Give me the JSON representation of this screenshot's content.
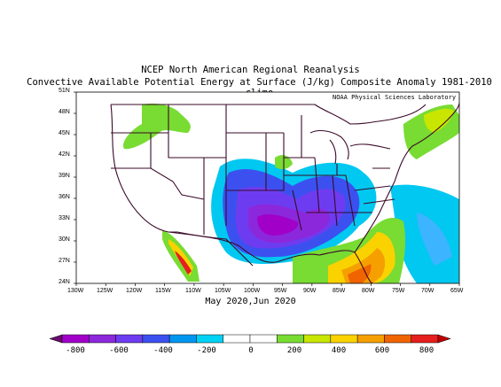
{
  "title_line1": "NCEP North American Regional Reanalysis",
  "title_line2": "Convective Available Potential Energy at Surface (J/kg) Composite Anomaly 1981-2010 climo",
  "credit": "NOAA Physical Sciences Laboratory",
  "period": "May 2020,Jun 2020",
  "lat_labels": [
    "51N",
    "48N",
    "45N",
    "42N",
    "39N",
    "36N",
    "33N",
    "30N",
    "27N",
    "24N"
  ],
  "lon_labels": [
    "130W",
    "125W",
    "120W",
    "115W",
    "110W",
    "105W",
    "100W",
    "95W",
    "90W",
    "85W",
    "80W",
    "75W",
    "70W",
    "65W"
  ],
  "colorbar": {
    "labels": [
      "-800",
      "-600",
      "-400",
      "-200",
      "0",
      "200",
      "400",
      "600",
      "800"
    ],
    "colors": [
      "#6a0a6e",
      "#a000c8",
      "#8c28dc",
      "#6e3cf0",
      "#3c50f0",
      "#0096f0",
      "#00d2f5",
      "#ffffff",
      "#ffffff",
      "#78dc32",
      "#c8e600",
      "#fad200",
      "#f5a000",
      "#f06400",
      "#e61e1e",
      "#c00000"
    ]
  }
}
